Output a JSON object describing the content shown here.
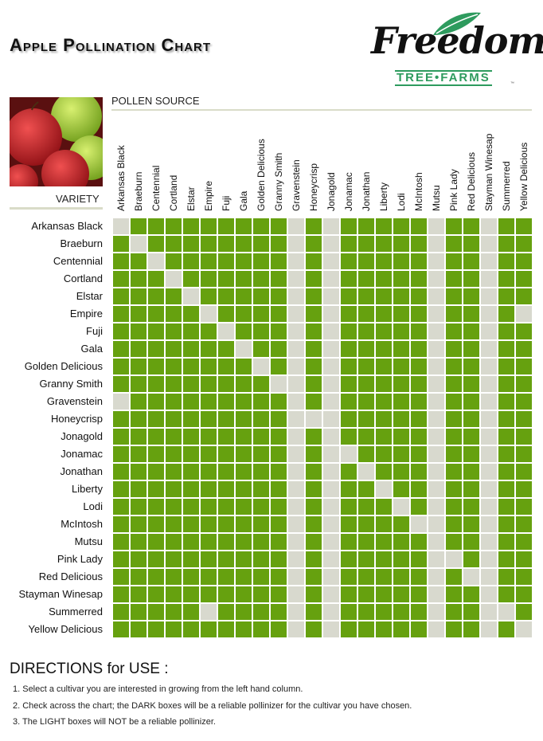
{
  "header": {
    "title": "Apple Pollination Chart"
  },
  "logo": {
    "script": "Freedom",
    "sub": "TREE•FARMS",
    "tm": "™"
  },
  "axis_labels": {
    "pollen": "POLLEN SOURCE",
    "variety": "VARIETY"
  },
  "colors": {
    "dark": "#66a10f",
    "light": "#d8d9ce"
  },
  "chart_data": {
    "type": "heatmap",
    "columns": [
      "Arkansas Black",
      "Braeburn",
      "Centennial",
      "Cortland",
      "Elstar",
      "Empire",
      "Fuji",
      "Gala",
      "Golden Delicious",
      "Granny Smith",
      "Gravenstein",
      "Honeycrisp",
      "Jonagold",
      "Jonamac",
      "Jonathan",
      "Liberty",
      "Lodi",
      "McIntosh",
      "Mutsu",
      "Pink Lady",
      "Red Delicious",
      "Stayman Winesap",
      "Summerred",
      "Yellow Delicious"
    ],
    "rows": [
      "Arkansas Black",
      "Braeburn",
      "Centennial",
      "Cortland",
      "Elstar",
      "Empire",
      "Fuji",
      "Gala",
      "Golden Delicious",
      "Granny Smith",
      "Gravenstein",
      "Honeycrisp",
      "Jonagold",
      "Jonamac",
      "Jonathan",
      "Liberty",
      "Lodi",
      "McIntosh",
      "Mutsu",
      "Pink Lady",
      "Red Delicious",
      "Stayman Winesap",
      "Summerred",
      "Yellow Delicious"
    ],
    "legend": {
      "1": "reliable pollinizer (dark)",
      "0": "not a reliable pollinizer (light)"
    },
    "matrix": [
      [
        0,
        1,
        1,
        1,
        1,
        1,
        1,
        1,
        1,
        1,
        0,
        1,
        0,
        1,
        1,
        1,
        1,
        1,
        0,
        1,
        1,
        0,
        1,
        1
      ],
      [
        1,
        0,
        1,
        1,
        1,
        1,
        1,
        1,
        1,
        1,
        0,
        1,
        0,
        1,
        1,
        1,
        1,
        1,
        0,
        1,
        1,
        0,
        1,
        1
      ],
      [
        1,
        1,
        0,
        1,
        1,
        1,
        1,
        1,
        1,
        1,
        0,
        1,
        0,
        1,
        1,
        1,
        1,
        1,
        0,
        1,
        1,
        0,
        1,
        1
      ],
      [
        1,
        1,
        1,
        0,
        1,
        1,
        1,
        1,
        1,
        1,
        0,
        1,
        0,
        1,
        1,
        1,
        1,
        1,
        0,
        1,
        1,
        0,
        1,
        1
      ],
      [
        1,
        1,
        1,
        1,
        0,
        1,
        1,
        1,
        1,
        1,
        0,
        1,
        0,
        1,
        1,
        1,
        1,
        1,
        0,
        1,
        1,
        0,
        1,
        1
      ],
      [
        1,
        1,
        1,
        1,
        1,
        0,
        1,
        1,
        1,
        1,
        0,
        1,
        0,
        1,
        1,
        1,
        1,
        1,
        0,
        1,
        1,
        0,
        1,
        0
      ],
      [
        1,
        1,
        1,
        1,
        1,
        1,
        0,
        1,
        1,
        1,
        0,
        1,
        0,
        1,
        1,
        1,
        1,
        1,
        0,
        1,
        1,
        0,
        1,
        1
      ],
      [
        1,
        1,
        1,
        1,
        1,
        1,
        1,
        0,
        1,
        1,
        0,
        1,
        0,
        1,
        1,
        1,
        1,
        1,
        0,
        1,
        1,
        0,
        1,
        1
      ],
      [
        1,
        1,
        1,
        1,
        1,
        1,
        1,
        1,
        0,
        1,
        0,
        1,
        0,
        1,
        1,
        1,
        1,
        1,
        0,
        1,
        1,
        0,
        1,
        1
      ],
      [
        1,
        1,
        1,
        1,
        1,
        1,
        1,
        1,
        1,
        0,
        0,
        1,
        0,
        1,
        1,
        1,
        1,
        1,
        0,
        1,
        1,
        0,
        1,
        1
      ],
      [
        0,
        1,
        1,
        1,
        1,
        1,
        1,
        1,
        1,
        1,
        0,
        1,
        0,
        1,
        1,
        1,
        1,
        1,
        0,
        1,
        1,
        0,
        1,
        1
      ],
      [
        1,
        1,
        1,
        1,
        1,
        1,
        1,
        1,
        1,
        1,
        0,
        0,
        0,
        1,
        1,
        1,
        1,
        1,
        0,
        1,
        1,
        0,
        1,
        1
      ],
      [
        1,
        1,
        1,
        1,
        1,
        1,
        1,
        1,
        1,
        1,
        0,
        1,
        0,
        1,
        1,
        1,
        1,
        1,
        0,
        1,
        1,
        0,
        1,
        1
      ],
      [
        1,
        1,
        1,
        1,
        1,
        1,
        1,
        1,
        1,
        1,
        0,
        1,
        0,
        0,
        1,
        1,
        1,
        1,
        0,
        1,
        1,
        0,
        1,
        1
      ],
      [
        1,
        1,
        1,
        1,
        1,
        1,
        1,
        1,
        1,
        1,
        0,
        1,
        0,
        1,
        0,
        1,
        1,
        1,
        0,
        1,
        1,
        0,
        1,
        1
      ],
      [
        1,
        1,
        1,
        1,
        1,
        1,
        1,
        1,
        1,
        1,
        0,
        1,
        0,
        1,
        1,
        0,
        1,
        1,
        0,
        1,
        1,
        0,
        1,
        1
      ],
      [
        1,
        1,
        1,
        1,
        1,
        1,
        1,
        1,
        1,
        1,
        0,
        1,
        0,
        1,
        1,
        1,
        0,
        1,
        0,
        1,
        1,
        0,
        1,
        1
      ],
      [
        1,
        1,
        1,
        1,
        1,
        1,
        1,
        1,
        1,
        1,
        0,
        1,
        0,
        1,
        1,
        1,
        1,
        0,
        0,
        1,
        1,
        0,
        1,
        1
      ],
      [
        1,
        1,
        1,
        1,
        1,
        1,
        1,
        1,
        1,
        1,
        0,
        1,
        0,
        1,
        1,
        1,
        1,
        1,
        0,
        1,
        1,
        0,
        1,
        1
      ],
      [
        1,
        1,
        1,
        1,
        1,
        1,
        1,
        1,
        1,
        1,
        0,
        1,
        0,
        1,
        1,
        1,
        1,
        1,
        0,
        0,
        1,
        0,
        1,
        1
      ],
      [
        1,
        1,
        1,
        1,
        1,
        1,
        1,
        1,
        1,
        1,
        0,
        1,
        0,
        1,
        1,
        1,
        1,
        1,
        0,
        1,
        0,
        0,
        1,
        1
      ],
      [
        1,
        1,
        1,
        1,
        1,
        1,
        1,
        1,
        1,
        1,
        0,
        1,
        0,
        1,
        1,
        1,
        1,
        1,
        0,
        1,
        1,
        0,
        1,
        1
      ],
      [
        1,
        1,
        1,
        1,
        1,
        0,
        1,
        1,
        1,
        1,
        0,
        1,
        0,
        1,
        1,
        1,
        1,
        1,
        0,
        1,
        1,
        0,
        0,
        1
      ],
      [
        1,
        1,
        1,
        1,
        1,
        1,
        1,
        1,
        1,
        1,
        0,
        1,
        0,
        1,
        1,
        1,
        1,
        1,
        0,
        1,
        1,
        0,
        1,
        0
      ]
    ]
  },
  "directions": {
    "title": "DIRECTIONS for USE :",
    "items": [
      "1.  Select a cultivar you are interested in growing from the left hand column.",
      "2.  Check across the chart; the DARK boxes will be a reliable pollinizer for the cultivar you have chosen.",
      "3.  The LIGHT boxes will NOT be a reliable pollinizer."
    ]
  }
}
